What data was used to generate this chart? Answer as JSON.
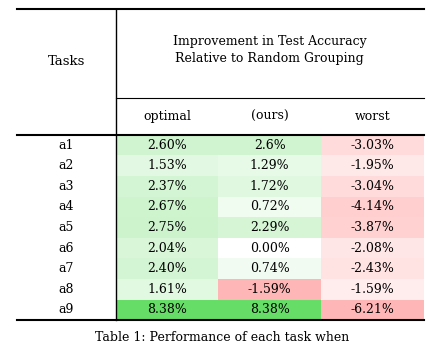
{
  "tasks": [
    "a1",
    "a2",
    "a3",
    "a4",
    "a5",
    "a6",
    "a7",
    "a8",
    "a9"
  ],
  "optimal": [
    "2.60%",
    "1.53%",
    "2.37%",
    "2.67%",
    "2.75%",
    "2.04%",
    "2.40%",
    "1.61%",
    "8.38%"
  ],
  "ours": [
    "2.6%",
    "1.29%",
    "1.72%",
    "0.72%",
    "2.29%",
    "0.00%",
    "0.74%",
    "-1.59%",
    "8.38%"
  ],
  "worst": [
    "-3.03%",
    "-1.95%",
    "-3.04%",
    "-4.14%",
    "-3.87%",
    "-2.08%",
    "-2.43%",
    "-1.59%",
    "-6.21%"
  ],
  "optimal_vals": [
    2.6,
    1.53,
    2.37,
    2.67,
    2.75,
    2.04,
    2.4,
    1.61,
    8.38
  ],
  "ours_vals": [
    2.6,
    1.29,
    1.72,
    0.72,
    2.29,
    0.0,
    0.74,
    -1.59,
    8.38
  ],
  "worst_vals": [
    -3.03,
    -1.95,
    -3.04,
    -4.14,
    -3.87,
    -2.08,
    -2.43,
    -1.59,
    -6.21
  ],
  "header_title": "Improvement in Test Accuracy\nRelative to Random Grouping",
  "col_headers": [
    "optimal",
    "(ours)",
    "worst"
  ],
  "row_label": "Tasks",
  "caption": "Table 1: Performance of each task when",
  "figsize": [
    4.28,
    3.5
  ],
  "dpi": 100,
  "bg_color": "#ffffff"
}
